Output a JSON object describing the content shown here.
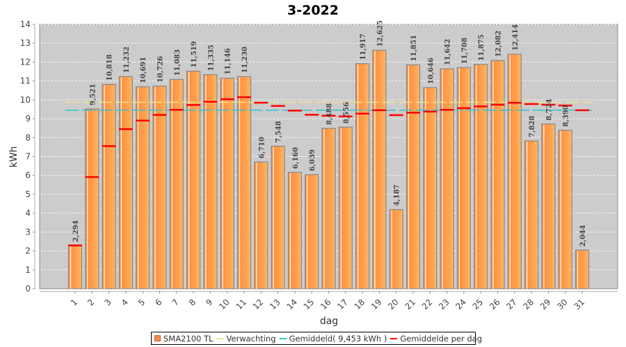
{
  "chart_data": {
    "type": "bar",
    "title": "3-2022",
    "xlabel": "dag",
    "ylabel": "kWh",
    "ylim": [
      0,
      14
    ],
    "yticks": [
      "0",
      "1",
      "2",
      "3",
      "4",
      "5",
      "6",
      "7",
      "8",
      "9",
      "10",
      "11",
      "12",
      "13",
      "14"
    ],
    "grid": true,
    "legend_position": "bottom",
    "categories": [
      "1",
      "2",
      "3",
      "4",
      "5",
      "6",
      "7",
      "8",
      "9",
      "10",
      "11",
      "12",
      "13",
      "14",
      "15",
      "16",
      "17",
      "18",
      "19",
      "20",
      "21",
      "22",
      "23",
      "24",
      "25",
      "26",
      "27",
      "28",
      "29",
      "30",
      "31"
    ],
    "series": [
      {
        "name": "SMA2100 TL",
        "kind": "bar",
        "color": "#ff8c3c",
        "values": [
          2.294,
          9.521,
          10.818,
          11.232,
          10.691,
          10.726,
          11.083,
          11.519,
          11.335,
          11.146,
          11.23,
          6.71,
          7.548,
          6.16,
          6.039,
          8.488,
          8.556,
          11.917,
          12.625,
          4.187,
          11.851,
          10.646,
          11.642,
          11.708,
          11.875,
          12.082,
          12.414,
          7.828,
          8.724,
          8.39,
          2.044
        ],
        "labels": [
          "2,294",
          "9,521",
          "10,818",
          "11,232",
          "10,691",
          "10,726",
          "11,083",
          "11,519",
          "11,335",
          "11,146",
          "11,230",
          "6,710",
          "7,548",
          "6,160",
          "6,039",
          "8,488",
          "8,556",
          "11,917",
          "12,625",
          "4,187",
          "11,851",
          "10,646",
          "11,642",
          "11,708",
          "11,875",
          "12,082",
          "12,414",
          "7,828",
          "8,724",
          "8,390",
          "2,044"
        ]
      },
      {
        "name": "Verwachting",
        "kind": "dashed-line",
        "color": "#f0e68c",
        "value": 9.87
      },
      {
        "name": "Gemiddeld( 9,453 kWh )",
        "kind": "dashed-line",
        "color": "#33c4cc",
        "value": 9.453
      },
      {
        "name": "Gemiddelde per dag",
        "kind": "markers",
        "color": "#ff0000",
        "values": [
          2.294,
          5.91,
          7.55,
          8.45,
          8.9,
          9.2,
          9.47,
          9.73,
          9.9,
          10.03,
          10.14,
          9.85,
          9.68,
          9.43,
          9.21,
          9.16,
          9.12,
          9.27,
          9.45,
          9.19,
          9.32,
          9.38,
          9.47,
          9.56,
          9.65,
          9.74,
          9.85,
          9.78,
          9.74,
          9.7,
          9.45
        ]
      }
    ]
  },
  "legend": {
    "items": [
      {
        "label": "SMA2100 TL",
        "color": "#f08a4b",
        "shape": "box"
      },
      {
        "label": "Verwachting",
        "color": "#f0e68c",
        "shape": "line"
      },
      {
        "label": "Gemiddeld( 9,453 kWh )",
        "color": "#33c4cc",
        "shape": "line"
      },
      {
        "label": "Gemiddelde per dag",
        "color": "#ff0000",
        "shape": "line"
      }
    ]
  }
}
